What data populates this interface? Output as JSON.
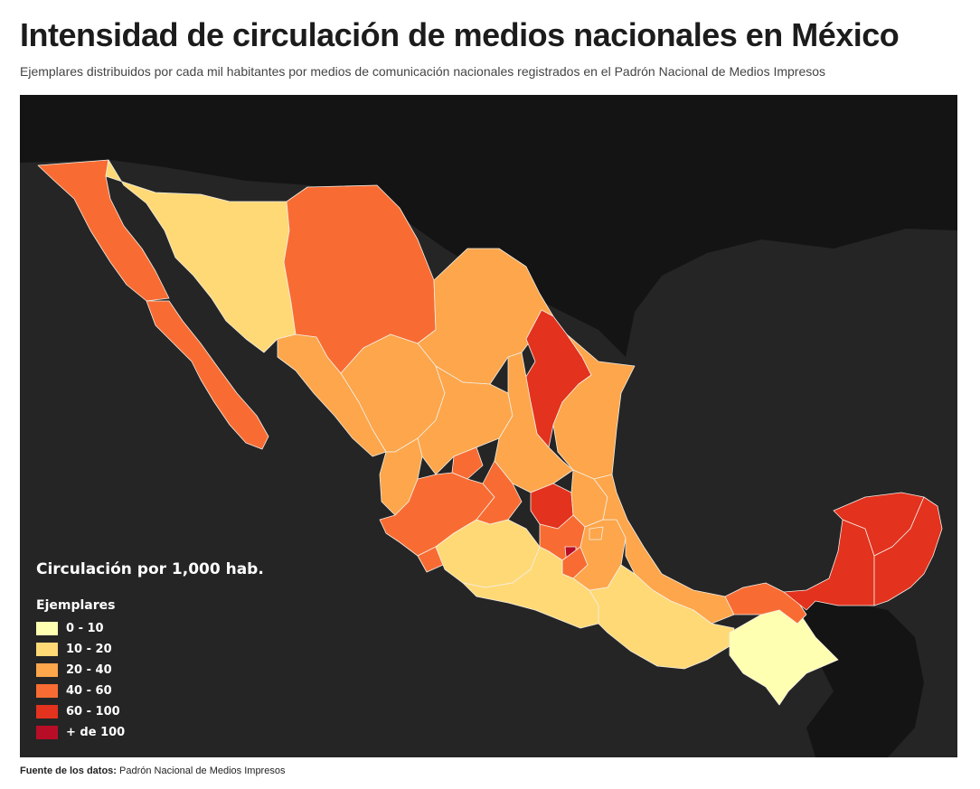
{
  "title": "Intensidad de circulación de medios nacionales en México",
  "subtitle": "Ejemplares distribuidos por cada mil habitantes por medios de comunicación nacionales registrados en el Padrón Nacional de Medios Impresos",
  "legend": {
    "title": "Circulación por 1,000 hab.",
    "subtitle": "Ejemplares",
    "items": [
      {
        "label": "0 - 10",
        "color": "#ffffb2"
      },
      {
        "label": "10 - 20",
        "color": "#fed976"
      },
      {
        "label": "20 - 40",
        "color": "#fda64b"
      },
      {
        "label": "40 - 60",
        "color": "#f86c33"
      },
      {
        "label": "60 - 100",
        "color": "#e3321e"
      },
      {
        "label": "+ de 100",
        "color": "#b80d26"
      }
    ]
  },
  "footer": {
    "label": "Fuente de los datos:",
    "value": "Padrón Nacional de Medios Impresos"
  },
  "map_colors": {
    "background": "#252525",
    "land": "#141414",
    "water": "#252525"
  }
}
